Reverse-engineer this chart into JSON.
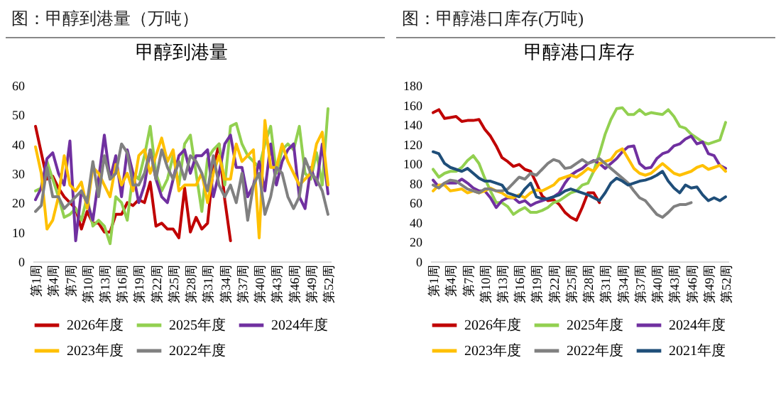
{
  "chart_data": [
    {
      "type": "line",
      "title": "图：甲醇到港量（万吨）",
      "subtitle": "甲醇到港量",
      "categories": [
        "第1周",
        null,
        null,
        "第4周",
        null,
        null,
        "第7周",
        null,
        null,
        "第10周",
        null,
        null,
        "第13周",
        null,
        null,
        "第16周",
        null,
        null,
        "第19周",
        null,
        null,
        "第22周",
        null,
        null,
        "第25周",
        null,
        null,
        "第28周",
        null,
        null,
        "第31周",
        null,
        null,
        "第34周",
        null,
        null,
        "第37周",
        null,
        null,
        "第40周",
        null,
        null,
        "第43周",
        null,
        null,
        "第46周",
        null,
        null,
        "第49周",
        null,
        null,
        "第52周"
      ],
      "ylim": [
        0,
        60
      ],
      "yticks": [
        0,
        10,
        20,
        30,
        40,
        50,
        60
      ],
      "grid": false,
      "legend": "bottom",
      "line_style": "solid",
      "marker": "none",
      "series": [
        {
          "name": "2026年度",
          "color": "#c00000",
          "values": [
            46,
            37,
            28,
            29,
            25,
            22,
            20,
            18,
            11,
            17,
            13,
            13,
            10,
            10,
            16,
            16,
            20,
            19,
            21,
            20,
            27,
            12,
            13,
            11,
            11,
            8,
            25,
            10,
            15,
            11,
            13,
            32,
            40,
            21,
            7,
            null,
            null,
            null,
            null,
            null,
            null,
            null,
            null,
            null,
            null,
            null,
            null,
            null,
            null,
            null,
            null,
            null
          ]
        },
        {
          "name": "2025年度",
          "color": "#92d050",
          "values": [
            24,
            25,
            34,
            28,
            22,
            15,
            16,
            18,
            14,
            22,
            12,
            14,
            12,
            6,
            22,
            20,
            14,
            30,
            28,
            36,
            46,
            30,
            24,
            28,
            36,
            26,
            40,
            43,
            30,
            17,
            35,
            38,
            40,
            26,
            46,
            47,
            40,
            36,
            34,
            32,
            40,
            46,
            30,
            38,
            40,
            38,
            46,
            30,
            28,
            37,
            26,
            52
          ]
        },
        {
          "name": "2024年度",
          "color": "#7030a0",
          "values": [
            21,
            25,
            35,
            37,
            30,
            26,
            41,
            7,
            24,
            20,
            14,
            28,
            43,
            28,
            36,
            22,
            38,
            30,
            20,
            26,
            38,
            28,
            22,
            20,
            28,
            36,
            38,
            30,
            36,
            36,
            38,
            22,
            30,
            40,
            43,
            32,
            32,
            22,
            26,
            34,
            24,
            40,
            26,
            34,
            38,
            40,
            22,
            18,
            32,
            26,
            40,
            23
          ]
        },
        {
          "name": "2023年度",
          "color": "#ffc000",
          "values": [
            39,
            30,
            11,
            14,
            22,
            36,
            26,
            24,
            27,
            18,
            32,
            30,
            26,
            22,
            33,
            26,
            30,
            24,
            36,
            38,
            30,
            36,
            42,
            34,
            38,
            24,
            26,
            26,
            26,
            30,
            20,
            30,
            36,
            28,
            28,
            40,
            34,
            36,
            38,
            8,
            48,
            32,
            32,
            40,
            34,
            30,
            26,
            28,
            30,
            40,
            44,
            26
          ]
        },
        {
          "name": "2022年度",
          "color": "#808080",
          "values": [
            17,
            19,
            32,
            22,
            22,
            18,
            20,
            22,
            24,
            20,
            34,
            22,
            36,
            28,
            30,
            40,
            37,
            26,
            26,
            30,
            38,
            28,
            38,
            32,
            28,
            34,
            28,
            36,
            34,
            30,
            24,
            36,
            26,
            22,
            26,
            20,
            30,
            14,
            26,
            30,
            16,
            22,
            32,
            30,
            22,
            18,
            22,
            35,
            30,
            28,
            24,
            16
          ]
        }
      ]
    },
    {
      "type": "line",
      "title": "图：甲醇港口库存(万吨)",
      "subtitle": "甲醇港口库存",
      "categories": [
        "第1周",
        null,
        null,
        "第4周",
        null,
        null,
        "第7周",
        null,
        null,
        "第10周",
        null,
        null,
        "第13周",
        null,
        null,
        "第16周",
        null,
        null,
        "第19周",
        null,
        null,
        "第22周",
        null,
        null,
        "第25周",
        null,
        null,
        "第28周",
        null,
        null,
        "第31周",
        null,
        null,
        "第34周",
        null,
        null,
        "第37周",
        null,
        null,
        "第40周",
        null,
        null,
        "第43周",
        null,
        null,
        "第46周",
        null,
        null,
        "第49周",
        null,
        null,
        "第52周"
      ],
      "ylim": [
        0,
        180
      ],
      "yticks": [
        0,
        20,
        40,
        60,
        80,
        100,
        120,
        140,
        160,
        180
      ],
      "grid": false,
      "legend": "bottom",
      "line_style": "solid",
      "marker": "none",
      "series": [
        {
          "name": "2026年度",
          "color": "#c00000",
          "values": [
            152,
            155,
            146,
            147,
            148,
            143,
            144,
            144,
            145,
            135,
            128,
            118,
            106,
            102,
            97,
            99,
            94,
            92,
            80,
            67,
            62,
            63,
            58,
            50,
            45,
            42,
            55,
            70,
            70,
            60,
            null,
            null,
            null,
            null,
            null,
            null,
            null,
            null,
            null,
            null,
            null,
            null,
            null,
            null,
            null,
            null,
            null,
            null,
            null,
            null,
            null,
            null
          ]
        },
        {
          "name": "2025年度",
          "color": "#92d050",
          "values": [
            94,
            86,
            90,
            92,
            92,
            96,
            103,
            108,
            100,
            85,
            72,
            60,
            60,
            56,
            48,
            52,
            55,
            50,
            50,
            52,
            55,
            60,
            62,
            66,
            70,
            72,
            78,
            80,
            92,
            110,
            130,
            145,
            156,
            157,
            150,
            150,
            155,
            150,
            152,
            151,
            150,
            155,
            148,
            138,
            136,
            130,
            126,
            122,
            120,
            122,
            124,
            142
          ]
        },
        {
          "name": "2024年度",
          "color": "#7030a0",
          "values": [
            83,
            76,
            80,
            80,
            80,
            84,
            80,
            75,
            72,
            72,
            65,
            55,
            62,
            65,
            65,
            60,
            62,
            57,
            60,
            62,
            64,
            66,
            70,
            80,
            88,
            92,
            95,
            100,
            103,
            100,
            95,
            100,
            105,
            112,
            117,
            118,
            100,
            95,
            96,
            105,
            110,
            112,
            118,
            120,
            125,
            128,
            120,
            122,
            110,
            108,
            98,
            95
          ]
        },
        {
          "name": "2023年度",
          "color": "#ffc000",
          "values": [
            72,
            78,
            78,
            72,
            73,
            74,
            70,
            72,
            70,
            72,
            75,
            72,
            70,
            66,
            65,
            68,
            65,
            70,
            73,
            72,
            75,
            78,
            84,
            86,
            88,
            86,
            90,
            95,
            92,
            100,
            102,
            104,
            112,
            115,
            105,
            95,
            90,
            88,
            90,
            95,
            100,
            95,
            90,
            88,
            90,
            92,
            96,
            98,
            94,
            96,
            98,
            92
          ]
        },
        {
          "name": "2022年度",
          "color": "#808080",
          "values": [
            78,
            75,
            80,
            83,
            82,
            78,
            74,
            72,
            70,
            74,
            74,
            72,
            72,
            74,
            80,
            86,
            84,
            90,
            88,
            94,
            100,
            104,
            102,
            95,
            96,
            100,
            104,
            100,
            102,
            105,
            100,
            95,
            90,
            85,
            80,
            72,
            65,
            62,
            55,
            48,
            45,
            50,
            56,
            58,
            58,
            60,
            null,
            null,
            null,
            null,
            null,
            null
          ]
        },
        {
          "name": "2021年度",
          "color": "#1f4e79",
          "values": [
            112,
            110,
            100,
            96,
            94,
            92,
            95,
            90,
            85,
            82,
            82,
            80,
            78,
            70,
            68,
            66,
            74,
            80,
            66,
            64,
            64,
            66,
            68,
            72,
            74,
            72,
            70,
            68,
            65,
            62,
            70,
            80,
            85,
            82,
            78,
            80,
            82,
            83,
            85,
            88,
            92,
            82,
            75,
            70,
            78,
            75,
            76,
            68,
            62,
            65,
            62,
            66
          ]
        }
      ]
    }
  ]
}
